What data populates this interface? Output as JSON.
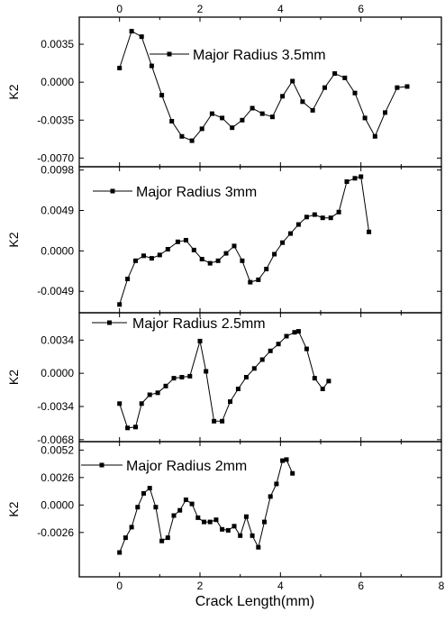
{
  "chart_data": [
    {
      "type": "line",
      "ylabel": "K2",
      "ylim": [
        -0.0078,
        0.006
      ],
      "yticks": [
        0.0035,
        0.0,
        -0.0035,
        -0.007
      ],
      "ytick_labels": [
        "0.0035",
        "0.0000",
        "-0.0035",
        "-0.0070"
      ],
      "xlim": [
        -1,
        8
      ],
      "top_xticks": [
        0,
        2,
        4,
        6
      ],
      "top_xtick_labels": [
        "0",
        "2",
        "4",
        "6"
      ],
      "legend_position": "top-right",
      "series": [
        {
          "name": "Major Radius 3.5mm",
          "x": [
            0.0,
            0.3,
            0.55,
            0.8,
            1.05,
            1.3,
            1.55,
            1.8,
            2.05,
            2.3,
            2.55,
            2.8,
            3.05,
            3.3,
            3.55,
            3.8,
            4.05,
            4.3,
            4.55,
            4.8,
            5.1,
            5.35,
            5.6,
            5.85,
            6.1,
            6.35,
            6.6,
            6.9,
            7.15
          ],
          "y": [
            0.0013,
            0.0047,
            0.0042,
            0.0015,
            -0.0012,
            -0.0036,
            -0.005,
            -0.0054,
            -0.0043,
            -0.0029,
            -0.0033,
            -0.0042,
            -0.0035,
            -0.0024,
            -0.0029,
            -0.0032,
            -0.0013,
            0.0001,
            -0.0018,
            -0.0026,
            -0.0005,
            0.0008,
            0.0004,
            -0.001,
            -0.0033,
            -0.005,
            -0.0028,
            -0.0005,
            -0.0004
          ]
        }
      ]
    },
    {
      "type": "line",
      "ylabel": "K2",
      "ylim": [
        -0.0075,
        0.0102
      ],
      "yticks": [
        0.0098,
        0.0049,
        0.0,
        -0.0049
      ],
      "ytick_labels": [
        "0.0098",
        "0.0049",
        "0.0000",
        "-0.0049"
      ],
      "xlim": [
        -1,
        8
      ],
      "legend_position": "top-left",
      "series": [
        {
          "name": "Major Radius 3mm",
          "x": [
            0.0,
            0.2,
            0.4,
            0.6,
            0.8,
            1.0,
            1.2,
            1.45,
            1.65,
            1.85,
            2.05,
            2.25,
            2.45,
            2.65,
            2.85,
            3.05,
            3.25,
            3.45,
            3.65,
            3.85,
            4.05,
            4.25,
            4.45,
            4.65,
            4.85,
            5.05,
            5.25,
            5.45,
            5.65,
            5.85,
            6.0,
            6.2
          ],
          "y": [
            -0.0065,
            -0.0034,
            -0.0012,
            -0.0006,
            -0.0009,
            -0.0005,
            0.0002,
            0.0011,
            0.0013,
            0.0001,
            -0.001,
            -0.0015,
            -0.0012,
            -0.0003,
            0.0006,
            -0.0012,
            -0.0038,
            -0.0035,
            -0.0022,
            -0.0004,
            0.001,
            0.0021,
            0.0032,
            0.0041,
            0.0044,
            0.004,
            0.004,
            0.0047,
            0.0084,
            0.0088,
            0.009,
            0.0023
          ]
        }
      ]
    },
    {
      "type": "line",
      "ylabel": "K2",
      "ylim": [
        -0.007,
        0.0062
      ],
      "yticks": [
        0.0034,
        0.0,
        -0.0034,
        -0.0068
      ],
      "ytick_labels": [
        "0.0034",
        "0.0000",
        "-0.0034",
        "-0.0068"
      ],
      "xlim": [
        -1,
        8
      ],
      "legend_position": "top-left",
      "series": [
        {
          "name": "Major Radius 2.5mm",
          "x": [
            0.0,
            0.2,
            0.4,
            0.55,
            0.75,
            0.95,
            1.15,
            1.35,
            1.55,
            1.75,
            2.0,
            2.15,
            2.35,
            2.55,
            2.75,
            2.95,
            3.15,
            3.35,
            3.55,
            3.75,
            3.95,
            4.15,
            4.35,
            4.45,
            4.65,
            4.85,
            5.05,
            5.2
          ],
          "y": [
            -0.0031,
            -0.0056,
            -0.0055,
            -0.0031,
            -0.0022,
            -0.002,
            -0.0013,
            -0.0005,
            -0.0004,
            -0.0003,
            0.0033,
            0.0002,
            -0.0049,
            -0.0049,
            -0.0029,
            -0.0016,
            -0.0004,
            0.0005,
            0.0014,
            0.0023,
            0.003,
            0.0038,
            0.0042,
            0.0043,
            0.0025,
            -0.0005,
            -0.0016,
            -0.0008
          ]
        }
      ]
    },
    {
      "type": "line",
      "ylabel": "K2",
      "ylim": [
        -0.0068,
        0.006
      ],
      "yticks": [
        0.0052,
        0.0026,
        0.0,
        -0.0026
      ],
      "ytick_labels": [
        "0.0052",
        "0.0026",
        "0.0000",
        "-0.0026"
      ],
      "xlim": [
        -1,
        8
      ],
      "bottom_xticks": [
        0,
        2,
        4,
        6,
        8
      ],
      "bottom_xtick_labels": [
        "0",
        "2",
        "4",
        "6",
        "8"
      ],
      "xlabel": "Crack Length(mm)",
      "legend_position": "top-left",
      "series": [
        {
          "name": "Major Radius 2mm",
          "x": [
            0.0,
            0.15,
            0.3,
            0.45,
            0.6,
            0.75,
            0.9,
            1.05,
            1.2,
            1.35,
            1.5,
            1.65,
            1.8,
            1.95,
            2.1,
            2.25,
            2.4,
            2.55,
            2.7,
            2.85,
            3.0,
            3.15,
            3.3,
            3.45,
            3.6,
            3.75,
            3.9,
            4.05,
            4.15,
            4.3
          ],
          "y": [
            -0.0045,
            -0.0031,
            -0.0021,
            -0.0002,
            0.0011,
            0.0016,
            -0.0002,
            -0.0034,
            -0.0031,
            -0.001,
            -0.0005,
            0.0005,
            0.0001,
            -0.0012,
            -0.0016,
            -0.0016,
            -0.0014,
            -0.0023,
            -0.0024,
            -0.002,
            -0.0029,
            -0.0011,
            -0.0029,
            -0.004,
            -0.0016,
            0.0008,
            0.002,
            0.0042,
            0.0043,
            0.003
          ]
        }
      ]
    }
  ]
}
